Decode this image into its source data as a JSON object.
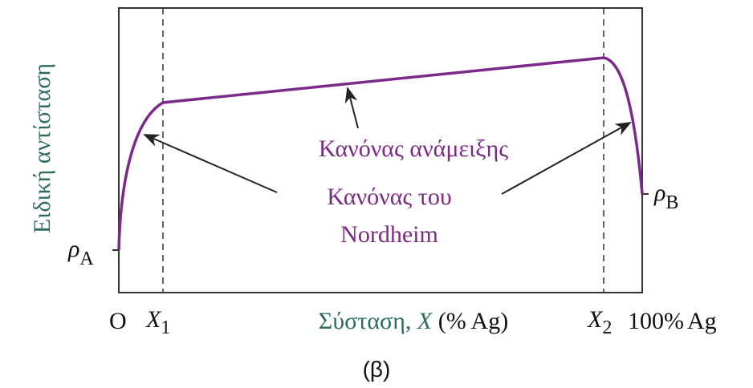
{
  "axis_labels": {
    "y": "Ειδική αντίσταση",
    "x": [
      "Σύσταση, ",
      "X",
      " (% Ag)"
    ]
  },
  "y_markers": {
    "rho_a": [
      "ρ",
      "A"
    ],
    "rho_b": [
      "ρ",
      "B"
    ]
  },
  "x_markers": {
    "origin": "O",
    "x1": [
      "X",
      "1"
    ],
    "x2": [
      "X",
      "2"
    ],
    "end": [
      "100%",
      "Ag"
    ]
  },
  "annotations": {
    "mixing_rule": "Κανόνας ανάμειξης",
    "nordheim": [
      "Κανόνας του",
      "Nordheim"
    ]
  },
  "caption": "(β)"
}
